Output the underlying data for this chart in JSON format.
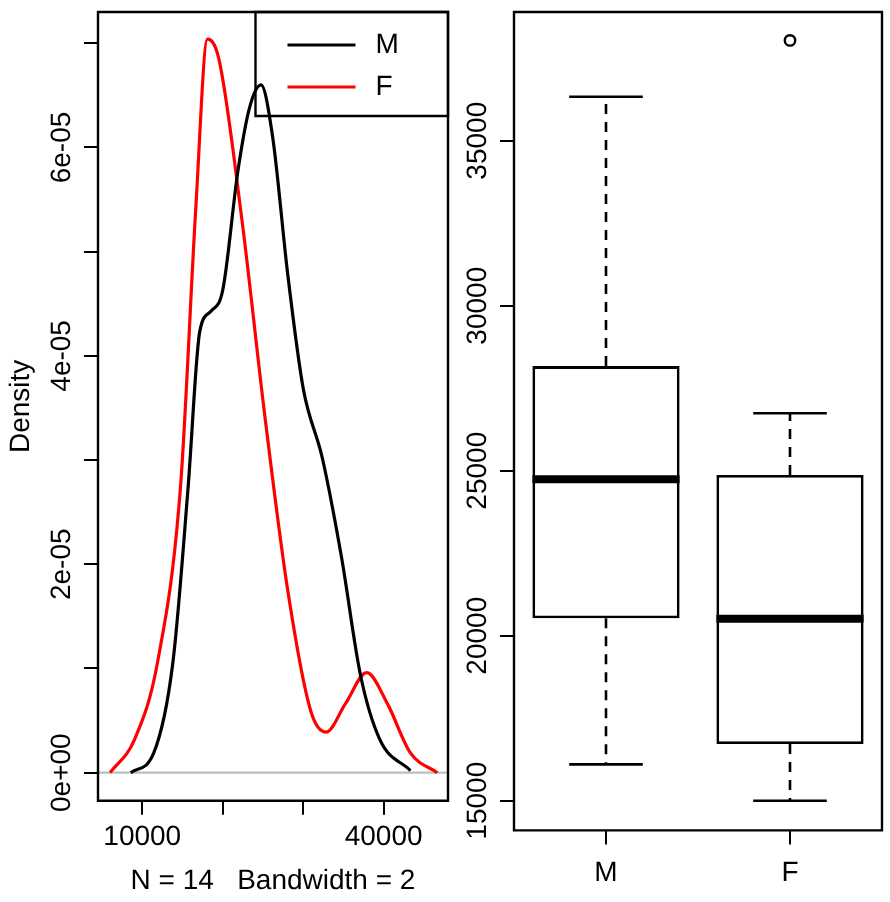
{
  "chart_data": [
    {
      "type": "line",
      "xlabel": "N = 14   Bandwidth = 2",
      "ylabel": "Density",
      "legend": "top right",
      "grid": false,
      "xlim": [
        4500,
        48000
      ],
      "xticks": [
        10000,
        {
          "value": 20000,
          "label": null
        },
        {
          "value": 30000,
          "label": null
        },
        40000
      ],
      "ylim": [
        -2.7e-06,
        7.3e-05
      ],
      "yticks": [
        {
          "value": 0,
          "label": "0e+00"
        },
        {
          "value": 1e-05,
          "label": null
        },
        {
          "value": 2e-05,
          "label": "2e-05"
        },
        {
          "value": 3e-05,
          "label": null
        },
        {
          "value": 4e-05,
          "label": "4e-05"
        },
        {
          "value": 5e-05,
          "label": null
        },
        {
          "value": 6e-05,
          "label": "6e-05"
        },
        {
          "value": 7e-05,
          "label": null
        }
      ],
      "ref_lines": [
        {
          "axis": "y",
          "value": 0,
          "color": "#bebebe"
        }
      ],
      "series": [
        {
          "name": "M",
          "color": "#000000",
          "x": [
            8570,
            11430,
            13810,
            15710,
            17140,
            18570,
            20000,
            21900,
            23330,
            24760,
            26190,
            28100,
            30000,
            32380,
            34760,
            37140,
            39520,
            43330
          ],
          "values": [
            0,
            1.9e-06,
            1.06e-05,
            2.75e-05,
            4.23e-05,
            4.43e-05,
            4.63e-05,
            5.78e-05,
            6.38e-05,
            6.6e-05,
            6.11e-05,
            4.77e-05,
            3.69e-05,
            3.02e-05,
            2.07e-05,
            9.3e-06,
            3.2e-06,
            2e-07
          ]
        },
        {
          "name": "F",
          "color": "#ff0000",
          "x": [
            6000,
            9050,
            11900,
            14760,
            16670,
            18100,
            19520,
            22380,
            25240,
            28100,
            30950,
            32860,
            35240,
            37900,
            40480,
            43330,
            46670
          ],
          "values": [
            0,
            3.2e-06,
            1.06e-05,
            2.75e-05,
            5.44e-05,
            7.04e-05,
            6.85e-05,
            5.31e-05,
            3.42e-05,
            1.74e-05,
            5.9e-06,
            3.9e-06,
            6.6e-06,
            9.6e-06,
            6.6e-06,
            1.9e-06,
            0
          ]
        }
      ]
    },
    {
      "type": "box",
      "categories": [
        "M",
        "F"
      ],
      "grid": false,
      "ylim": [
        14100,
        38900
      ],
      "yticks": [
        15000,
        20000,
        25000,
        30000,
        35000
      ],
      "boxes": [
        {
          "low": 16100,
          "q1": 20530,
          "median": 24740,
          "q3": 28170,
          "high": 36330
        },
        {
          "low": 15000,
          "q1": 16720,
          "median": 20510,
          "q3": 24870,
          "high": 26740,
          "outliers": [
            38040
          ]
        }
      ]
    }
  ]
}
